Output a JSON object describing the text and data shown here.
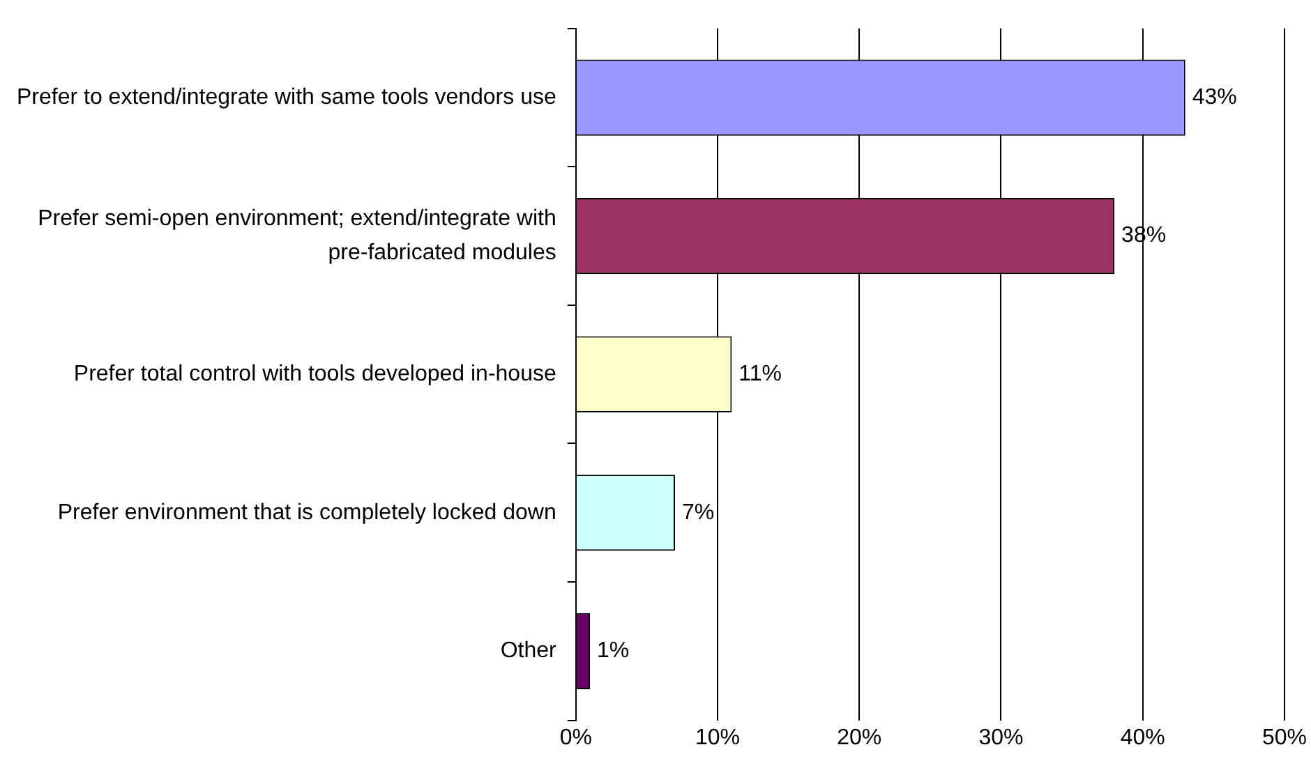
{
  "chart_data": {
    "type": "bar",
    "orientation": "horizontal",
    "categories": [
      "Prefer to extend/integrate with same tools vendors use",
      "Prefer semi-open environment; extend/integrate with pre-fabricated modules",
      "Prefer total control with tools developed in-house",
      "Prefer environment that is completely locked down",
      "Other"
    ],
    "values": [
      43,
      38,
      11,
      7,
      1
    ],
    "value_labels": [
      "43%",
      "38%",
      "11%",
      "7%",
      "1%"
    ],
    "colors": [
      "#9999ff",
      "#993366",
      "#ffffcc",
      "#ccffff",
      "#660066"
    ],
    "xlim": [
      0,
      50
    ],
    "xticks": [
      {
        "value": 0,
        "label": "0%"
      },
      {
        "value": 10,
        "label": "10%"
      },
      {
        "value": 20,
        "label": "20%"
      },
      {
        "value": 30,
        "label": "30%"
      },
      {
        "value": 40,
        "label": "40%"
      },
      {
        "value": 50,
        "label": "50%"
      }
    ],
    "grid": "x",
    "legend": false
  }
}
